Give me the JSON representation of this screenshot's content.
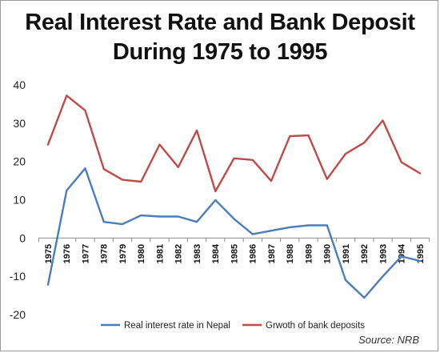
{
  "chart_data": {
    "type": "line",
    "title_line1": "Real Interest Rate and Bank Deposit",
    "title_line2": "During 1975 to 1995",
    "x": [
      "1975",
      "1976",
      "1977",
      "1978",
      "1979",
      "1980",
      "1981",
      "1982",
      "1983",
      "1984",
      "1985",
      "1986",
      "1987",
      "1988",
      "1989",
      "1990",
      "1991",
      "1992",
      "1993",
      "1994",
      "1995"
    ],
    "series": [
      {
        "name": "Real interest rate in Nepal",
        "color": "#4a7ebb",
        "values": [
          -12.2,
          12.4,
          18.2,
          4.2,
          3.6,
          5.9,
          5.6,
          5.6,
          4.2,
          9.9,
          5.0,
          1.0,
          1.9,
          2.8,
          3.3,
          3.3,
          -11.0,
          -15.6,
          -10.0,
          -4.8,
          -6.0
        ]
      },
      {
        "name": "Grwoth of bank deposits",
        "color": "#be4b48",
        "values": [
          24.4,
          37.2,
          33.3,
          18.0,
          15.2,
          14.7,
          24.4,
          18.5,
          28.1,
          12.2,
          20.8,
          20.4,
          14.9,
          26.6,
          26.8,
          15.4,
          22.0,
          24.9,
          30.7,
          19.8,
          16.9
        ]
      }
    ],
    "ylim": [
      -20,
      40
    ],
    "yticks": [
      -20,
      -10,
      0,
      10,
      20,
      30,
      40
    ],
    "grid": false,
    "legend_position": "bottom"
  },
  "source": "Source: NRB"
}
